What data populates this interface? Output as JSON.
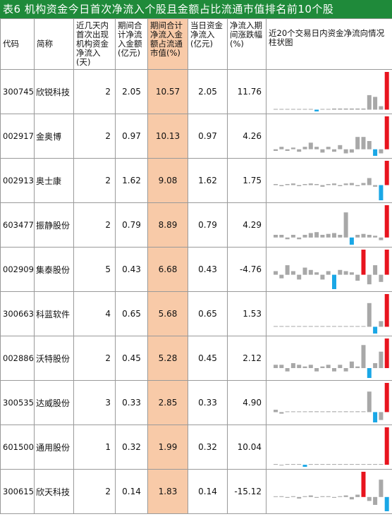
{
  "title": "表6 机构资金今日首次净流入个股且金额占比流通市值排名前10个股",
  "headers": {
    "code": "代码",
    "name": "简称",
    "days": "近几天内首次出现机构资金净流入(天)",
    "period_inflow": "期间合计净流入金额(亿元)",
    "ratio": "期间合计净流入金额占流通市值(%)",
    "today_inflow": "当日资金净流入(亿元)",
    "change": "净流入期间涨跌幅(%)",
    "chart": "近20个交易日内资金净流向情况柱状图"
  },
  "colors": {
    "title_bg": "#1f8a3a",
    "highlight": "#f8caa8",
    "bar_gray": "#a8a8a8",
    "bar_red": "#e8141e",
    "bar_blue": "#1aa7e6"
  },
  "rows": [
    {
      "code": "300745",
      "name": "欣锐科技",
      "days": "2",
      "period_inflow": "2.05",
      "ratio": "10.57",
      "today_inflow": "2.05",
      "change": "11.76",
      "bars": [
        0,
        0,
        0,
        0,
        0,
        0,
        0,
        -0.3,
        0,
        0,
        0.2,
        0.2,
        0.2,
        0.2,
        0.2,
        0.2,
        2.5,
        2.2,
        0.6,
        6.5
      ]
    },
    {
      "code": "002917",
      "name": "金奥博",
      "days": "2",
      "period_inflow": "0.97",
      "ratio": "10.13",
      "today_inflow": "0.97",
      "change": "4.26",
      "bars": [
        -0.2,
        0.3,
        -0.2,
        0.2,
        -0.3,
        0.3,
        0.8,
        0.3,
        -0.4,
        0.3,
        -0.3,
        0.5,
        -0.5,
        -0.4,
        1.5,
        1.5,
        1.0,
        -0.8,
        -0.5,
        4.0
      ]
    },
    {
      "code": "002913",
      "name": "奥士康",
      "days": "2",
      "period_inflow": "1.62",
      "ratio": "9.08",
      "today_inflow": "1.62",
      "change": "1.75",
      "bars": [
        0.2,
        -0.2,
        0.2,
        0.3,
        -0.2,
        0.2,
        0.3,
        0.2,
        -0.3,
        0.2,
        0.3,
        -0.2,
        0.3,
        0.4,
        -0.2,
        0.4,
        1.3,
        -0.3,
        -2.8,
        4.5
      ]
    },
    {
      "code": "603477",
      "name": "振静股份",
      "days": "2",
      "period_inflow": "0.79",
      "ratio": "8.89",
      "today_inflow": "0.79",
      "change": "4.29",
      "bars": [
        0.3,
        0.3,
        -0.2,
        0.3,
        -0.2,
        0.3,
        0.5,
        0.6,
        0.3,
        0.4,
        0.5,
        0.3,
        2.8,
        -0.8,
        0.3,
        0.4,
        0.3,
        0.2,
        -0.3,
        3.6
      ]
    },
    {
      "code": "002909",
      "name": "集泰股份",
      "days": "5",
      "period_inflow": "0.43",
      "ratio": "6.68",
      "today_inflow": "0.43",
      "change": "-4.76",
      "bars": [
        0.3,
        -0.3,
        0.8,
        0.3,
        -0.4,
        0.6,
        0.4,
        0.2,
        -0.4,
        0.3,
        -1.2,
        0.4,
        0.3,
        0.2,
        -0.5,
        2.1,
        -0.8,
        0.8,
        -0.6,
        2.1
      ]
    },
    {
      "code": "300663",
      "name": "科蓝软件",
      "days": "4",
      "period_inflow": "0.65",
      "ratio": "5.68",
      "today_inflow": "0.65",
      "change": "1.53",
      "bars": [
        0,
        0,
        0,
        0,
        0,
        0,
        0,
        0,
        0,
        0,
        0,
        0,
        0,
        0,
        0,
        0,
        2.1,
        -0.6,
        0.5,
        2.9
      ]
    },
    {
      "code": "002886",
      "name": "沃特股份",
      "days": "2",
      "period_inflow": "0.45",
      "ratio": "5.28",
      "today_inflow": "0.45",
      "change": "2.12",
      "bars": [
        0.2,
        0.2,
        -0.2,
        0.3,
        0.2,
        0.1,
        0.2,
        -0.2,
        0.1,
        0.2,
        -0.2,
        0.2,
        -0.2,
        0.4,
        0.1,
        1.4,
        -0.6,
        0.3,
        1.0,
        1.8
      ]
    },
    {
      "code": "300535",
      "name": "达威股份",
      "days": "3",
      "period_inflow": "0.33",
      "ratio": "2.85",
      "today_inflow": "0.33",
      "change": "4.90",
      "bars": [
        0.3,
        -0.2,
        0,
        0,
        0,
        0,
        0.1,
        0.1,
        0,
        0.1,
        0.1,
        0,
        0.1,
        0,
        0.1,
        0.1,
        2.6,
        -1.3,
        -1.0,
        3.7
      ]
    },
    {
      "code": "601500",
      "name": "通用股份",
      "days": "1",
      "period_inflow": "0.32",
      "ratio": "1.99",
      "today_inflow": "0.32",
      "change": "10.04",
      "bars": [
        0,
        -0.15,
        0,
        0,
        0,
        -0.5,
        0,
        0,
        0,
        0,
        0,
        0,
        0,
        0,
        0,
        0,
        0,
        0,
        0,
        9.0
      ]
    },
    {
      "code": "300615",
      "name": "欣天科技",
      "days": "2",
      "period_inflow": "0.14",
      "ratio": "1.83",
      "today_inflow": "0.14",
      "change": "-15.12",
      "bars": [
        0,
        0.1,
        -0.1,
        0.1,
        -0.2,
        0.1,
        0.2,
        -0.1,
        0.1,
        0.1,
        -0.1,
        0.1,
        0.2,
        -0.3,
        0.3,
        3.2,
        -0.5,
        -1.0,
        2.2,
        -1.8
      ]
    }
  ]
}
